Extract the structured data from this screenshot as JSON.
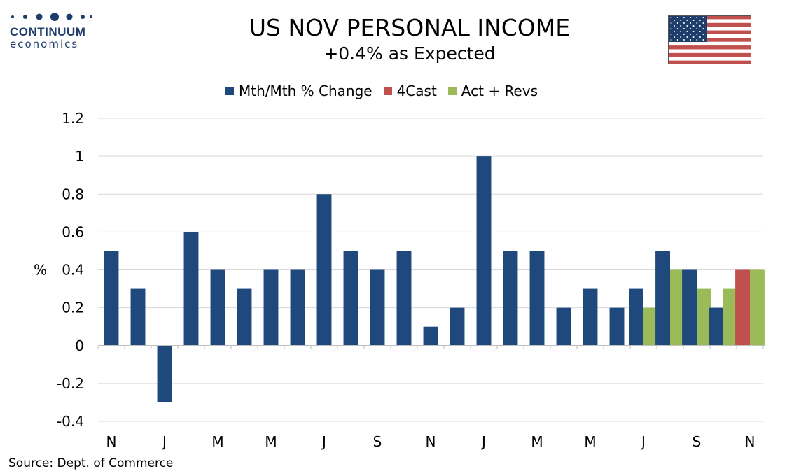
{
  "logo": {
    "name": "CONTINUUM",
    "sub": "economics"
  },
  "title": "US NOV PERSONAL INCOME",
  "subtitle": "+0.4% as Expected",
  "legend": [
    {
      "label": "Mth/Mth % Change",
      "color": "#1f497d"
    },
    {
      "label": "4Cast",
      "color": "#c0504d"
    },
    {
      "label": "Act + Revs",
      "color": "#9bbb59"
    }
  ],
  "source": "Source: Dept. of Commerce",
  "chart_data": {
    "type": "bar",
    "ylabel": "%",
    "ylim": [
      -0.4,
      1.2
    ],
    "yticks": [
      "1.2",
      "1",
      "0.8",
      "0.6",
      "0.4",
      "0.2",
      "0",
      "-0.2",
      "-0.4"
    ],
    "ytick_values": [
      1.2,
      1,
      0.8,
      0.6,
      0.4,
      0.2,
      0,
      -0.2,
      -0.4
    ],
    "x_tick_labels": [
      "N",
      "J",
      "M",
      "M",
      "J",
      "S",
      "N",
      "J",
      "M",
      "M",
      "J",
      "S",
      "N"
    ],
    "grid": true,
    "legend_position": "top",
    "series": [
      {
        "name": "Mth/Mth % Change",
        "color": "#1f497d",
        "values": [
          0.5,
          0.3,
          -0.3,
          0.6,
          0.4,
          0.3,
          0.4,
          0.4,
          0.8,
          0.5,
          0.4,
          0.5,
          0.1,
          0.2,
          1.0,
          0.5,
          0.5,
          0.2,
          0.3,
          0.2,
          0.3,
          0.5,
          0.4,
          0.2,
          null
        ]
      },
      {
        "name": "4Cast",
        "color": "#c0504d",
        "values": [
          null,
          null,
          null,
          null,
          null,
          null,
          null,
          null,
          null,
          null,
          null,
          null,
          null,
          null,
          null,
          null,
          null,
          null,
          null,
          null,
          null,
          null,
          null,
          null,
          0.4
        ]
      },
      {
        "name": "Act + Revs",
        "color": "#9bbb59",
        "values": [
          null,
          null,
          null,
          null,
          null,
          null,
          null,
          null,
          null,
          null,
          null,
          null,
          null,
          null,
          null,
          null,
          null,
          null,
          null,
          null,
          0.2,
          0.4,
          0.3,
          0.3,
          0.4
        ]
      }
    ]
  }
}
